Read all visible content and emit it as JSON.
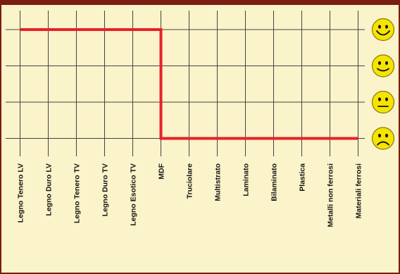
{
  "chart_data": {
    "type": "line",
    "categories": [
      "Legno Tenero LV",
      "Legno Duro LV",
      "Legno Tenero TV",
      "Legno Duro TV",
      "Legno Esotico TV",
      "MDF",
      "Truciolare",
      "Multistrato",
      "Laminato",
      "Bilaminato",
      "Plastica",
      "Metalli non ferrosi",
      "Materiali ferrosi"
    ],
    "levels": [
      {
        "rating": 4,
        "icon": "very-happy-smiley-icon"
      },
      {
        "rating": 3,
        "icon": "happy-smiley-icon"
      },
      {
        "rating": 2,
        "icon": "neutral-smiley-icon"
      },
      {
        "rating": 1,
        "icon": "sad-smiley-icon"
      }
    ],
    "series": [
      {
        "values": [
          4,
          4,
          4,
          4,
          4,
          1,
          1,
          1,
          1,
          1,
          1,
          1,
          1
        ],
        "color": "#e8202a"
      }
    ],
    "ylim": [
      1,
      4
    ],
    "grid": true,
    "colors": {
      "border": "#7a1e10",
      "background": "#fbf3c9",
      "grid": "#444444",
      "smiley_fill": "#f5e400",
      "smiley_outline": "#8a7a10"
    }
  }
}
